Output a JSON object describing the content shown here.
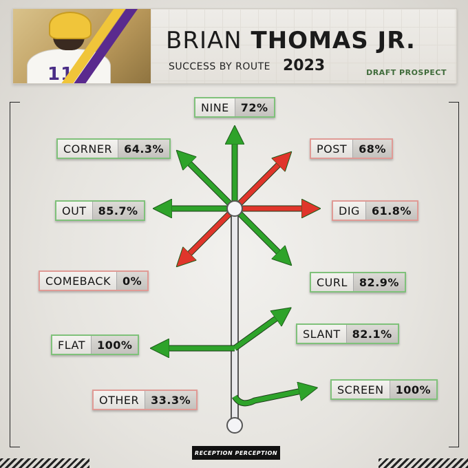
{
  "header": {
    "first_name": "BRIAN",
    "last_name": "THOMAS JR.",
    "subtitle": "SUCCESS BY ROUTE",
    "year": "2023",
    "tag": "DRAFT PROSPECT",
    "jersey_number": "11"
  },
  "logo_text": "RECEPTION PERCEPTION",
  "colors": {
    "high": "#2ea32a",
    "low": "#e0352b",
    "stem": "#e9e9ec",
    "high_border": "#7fc17a",
    "low_border": "#e09a95"
  },
  "chart_data": {
    "type": "route-tree",
    "title": "SUCCESS BY ROUTE",
    "unit": "%",
    "routes": [
      {
        "name": "NINE",
        "value": 72,
        "label": "72%",
        "category": "high"
      },
      {
        "name": "CORNER",
        "value": 64.3,
        "label": "64.3%",
        "category": "high"
      },
      {
        "name": "POST",
        "value": 68,
        "label": "68%",
        "category": "low"
      },
      {
        "name": "OUT",
        "value": 85.7,
        "label": "85.7%",
        "category": "high"
      },
      {
        "name": "DIG",
        "value": 61.8,
        "label": "61.8%",
        "category": "low"
      },
      {
        "name": "COMEBACK",
        "value": 0,
        "label": "0%",
        "category": "low"
      },
      {
        "name": "CURL",
        "value": 82.9,
        "label": "82.9%",
        "category": "high"
      },
      {
        "name": "SLANT",
        "value": 82.1,
        "label": "82.1%",
        "category": "high"
      },
      {
        "name": "FLAT",
        "value": 100,
        "label": "100%",
        "category": "high"
      },
      {
        "name": "SCREEN",
        "value": 100,
        "label": "100%",
        "category": "high"
      },
      {
        "name": "OTHER",
        "value": 33.3,
        "label": "33.3%",
        "category": "low"
      }
    ]
  }
}
